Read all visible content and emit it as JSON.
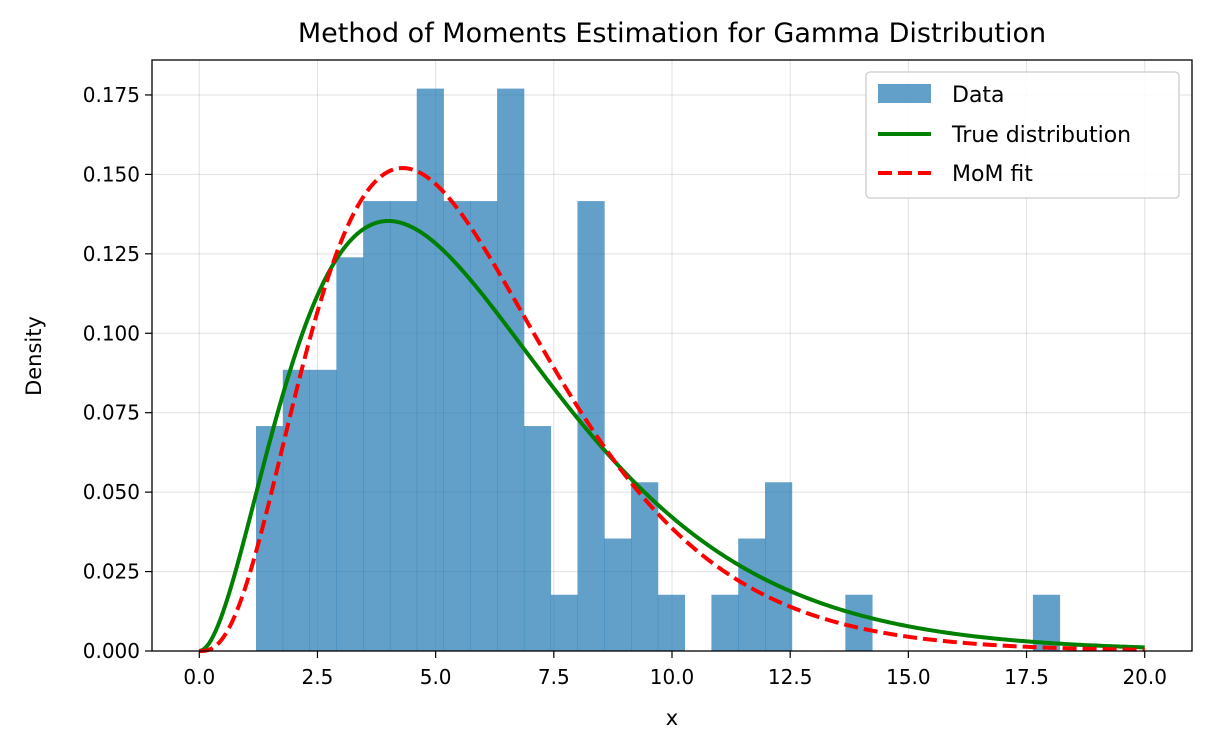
{
  "chart_data": {
    "type": "histogram",
    "title": "Method of Moments Estimation for Gamma Distribution",
    "xlabel": "x",
    "ylabel": "Density",
    "xlim": [
      -1.0,
      21.0
    ],
    "ylim": [
      0.0,
      0.186
    ],
    "xticks": [
      "0.0",
      "2.5",
      "5.0",
      "7.5",
      "10.0",
      "12.5",
      "15.0",
      "17.5",
      "20.0"
    ],
    "yticks": [
      "0.000",
      "0.025",
      "0.050",
      "0.075",
      "0.100",
      "0.125",
      "0.150",
      "0.175"
    ],
    "grid": true,
    "legend_position": "top-right",
    "histogram": {
      "name": "Data",
      "color": "#1f77b4",
      "bin_start": 1.2,
      "bin_width": 0.5667,
      "densities": [
        0.0708,
        0.0885,
        0.0885,
        0.1239,
        0.1416,
        0.1416,
        0.177,
        0.1416,
        0.1416,
        0.177,
        0.0708,
        0.0177,
        0.1416,
        0.0354,
        0.0531,
        0.0177,
        0.0,
        0.0177,
        0.0354,
        0.0531,
        0.0,
        0.0,
        0.0177,
        0.0,
        0.0,
        0.0,
        0.0,
        0.0,
        0.0,
        0.0177
      ]
    },
    "series": [
      {
        "name": "True distribution",
        "color": "#008000",
        "style": "solid",
        "distribution": "gamma",
        "shape": 3.0,
        "scale": 2.0,
        "x_range": [
          0.0,
          20.0
        ]
      },
      {
        "name": "MoM fit",
        "color": "#ff0000",
        "style": "dashed",
        "distribution": "gamma",
        "shape": 3.85,
        "scale": 1.51,
        "x_range": [
          0.0,
          20.0
        ]
      }
    ]
  }
}
